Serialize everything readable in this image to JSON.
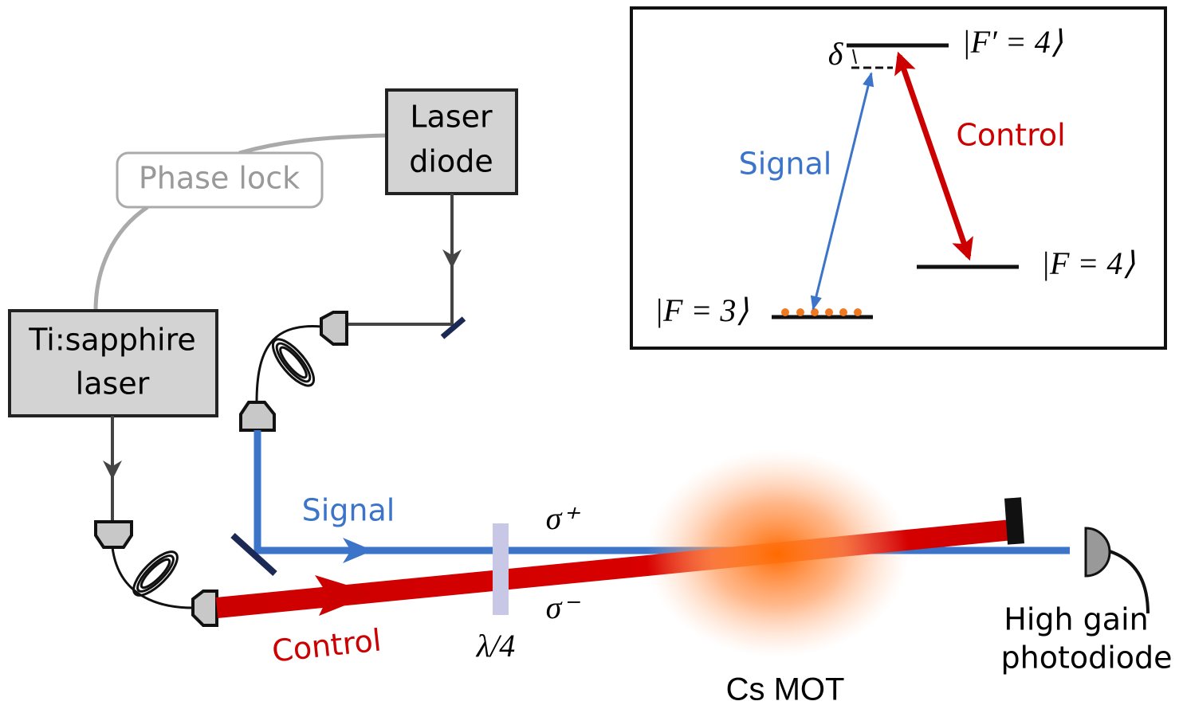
{
  "phase_lock": "Phase lock",
  "laser_diode": {
    "lines": [
      "Laser",
      "diode"
    ]
  },
  "ti_sapphire": {
    "lines": [
      "Ti:sapphire",
      "laser"
    ]
  },
  "beams": {
    "signal": "Signal",
    "control": "Control"
  },
  "waveplate": "λ/4",
  "polarizations": {
    "plus": "σ⁺",
    "minus": "σ⁻"
  },
  "detector": {
    "lines": [
      "High gain",
      "photodiode"
    ]
  },
  "mot": "Cs MOT",
  "inset": {
    "excited": "|F′ = 4⟩",
    "upper_ground": "|F = 4⟩",
    "lower_ground": "|F = 3⟩",
    "detuning": "δ",
    "signal": "Signal",
    "control": "Control"
  }
}
